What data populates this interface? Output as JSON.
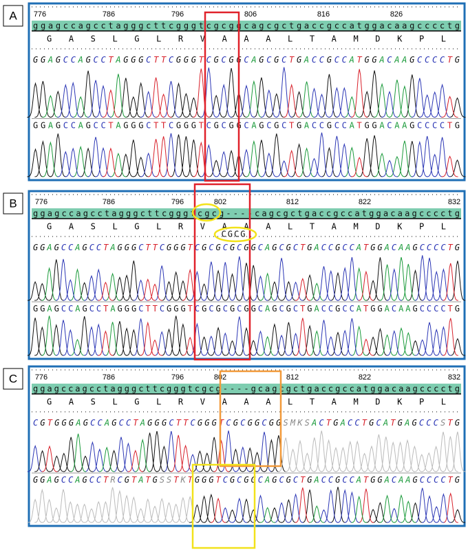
{
  "panels": [
    {
      "label": "A",
      "positions": [
        "776",
        "786",
        "796",
        "806",
        "816",
        "826"
      ],
      "reference": "ggagccagcctagggcttcgggtcgcggcagcgctgaccgccatggacaagcccctg",
      "protein": "G  A  S  L  G  L  R  V  A  A  A  L  T  A  M  D  K  P  L",
      "read1": "GGAGCCAGCCTAGGGCTTCGGGTCGCGGCAGCGCTGACCGCCATGGACAAGCCCCTG",
      "read2": "GGAGCCAGCCTAGGGCTTCGGGTCGCGGCAGCGCTGACCGCCATGGACAAGCCCCTG"
    },
    {
      "label": "B",
      "positions": [
        "776",
        "786",
        "796",
        "802",
        "812",
        "822",
        "832"
      ],
      "reference": "ggagccagcctagggcttcgggtcgcg----cagcgctgaccgccatggacaagcccctg",
      "protein": "G  A  S  L  G  L  R  V  A     A  A  L  T  A  M  D  K  P  L",
      "insertion": "CGCG",
      "read1": "GGAGCCAGCCTAGGGCTTCGGGTCGCGCGCGGCAGCGCTGACCGCCATGGACAAGCCCCTG",
      "read2": "GGAGCCAGCCTAGGGCTTCGGGTCGCGCGCGGCAGCGCTGACCGCCATGGACAAGCCCCTG"
    },
    {
      "label": "C",
      "positions": [
        "776",
        "786",
        "796",
        "802",
        "812",
        "822",
        "832"
      ],
      "reference": "ggagccagcctagggcttcgggtcgcg----gcagcgctgaccgccatggacaagcccctg",
      "protein": "G  A  S  L  G  L  R  V  A     A  A  L  T  A  M  D  K  P  L",
      "read1": "CGTGGGAGCCAGCCTAGGGCTTCGGGTCGCGGCGGSMKSACTGACCTGCATGAGCCCSTG",
      "read2": "GGAGCCAGCCTRCGTATGSSTKTGGGTCGCGGCAGCGCTGACCGCCATGGACAAGCCCCTG"
    }
  ]
}
